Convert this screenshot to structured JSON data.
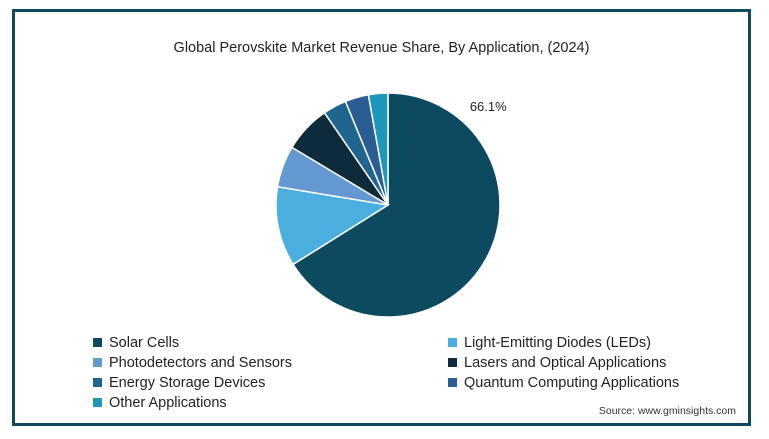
{
  "chart_data": {
    "type": "pie",
    "title": "Global Perovskite Market Revenue Share, By Application,  (2024)",
    "slices": [
      {
        "label": "Solar Cells",
        "value": 66.1,
        "color": "#0c4a60",
        "data_label": "66.1%"
      },
      {
        "label": "Light-Emitting Diodes (LEDs)",
        "value": 11.5,
        "color": "#4aaedf",
        "data_label": ""
      },
      {
        "label": "Photodetectors and Sensors",
        "value": 6.0,
        "color": "#6399d0",
        "data_label": ""
      },
      {
        "label": "Lasers and Optical Applications",
        "value": 6.8,
        "color": "#0d2b3b",
        "data_label": ""
      },
      {
        "label": "Energy Storage Devices",
        "value": 3.4,
        "color": "#1f6590",
        "data_label": ""
      },
      {
        "label": "Quantum Computing Applications",
        "value": 3.4,
        "color": "#2a5d93",
        "data_label": ""
      },
      {
        "label": "Other Applications",
        "value": 2.8,
        "color": "#1f97bd",
        "data_label": ""
      }
    ],
    "legend_position": "bottom"
  },
  "source": "Source: www.gminsights.com"
}
